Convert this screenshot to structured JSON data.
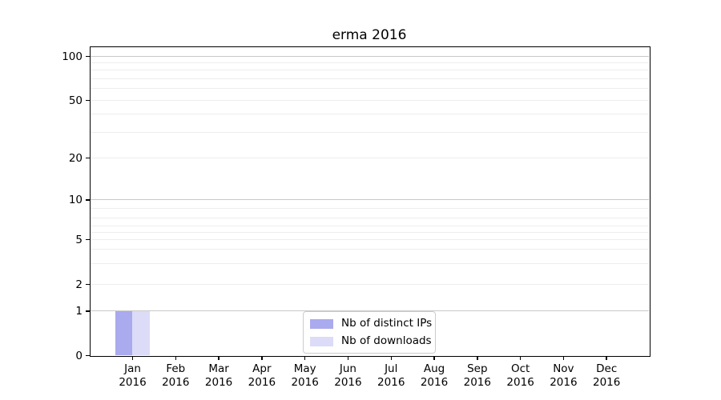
{
  "chart_data": {
    "type": "bar",
    "title": "erma 2016",
    "categories": [
      "Jan",
      "Feb",
      "Mar",
      "Apr",
      "May",
      "Jun",
      "Jul",
      "Aug",
      "Sep",
      "Oct",
      "Nov",
      "Dec"
    ],
    "category_year": "2016",
    "series": [
      {
        "name": "Nb of distinct IPs",
        "color": "#aaaaee",
        "values": [
          1,
          0,
          0,
          0,
          0,
          0,
          0,
          0,
          0,
          0,
          0,
          0
        ]
      },
      {
        "name": "Nb of downloads",
        "color": "#dcdcf8",
        "values": [
          1,
          0,
          0,
          0,
          0,
          0,
          0,
          0,
          0,
          0,
          0,
          0
        ]
      }
    ],
    "y_ticks": [
      0,
      1,
      2,
      5,
      10,
      20,
      50,
      100
    ],
    "y_scale": "symlog",
    "ylim": [
      0,
      120
    ],
    "grid": true,
    "legend": {
      "position": "lower center",
      "items": [
        "Nb of distinct IPs",
        "Nb of downloads"
      ]
    },
    "colors": {
      "background": "#ffffff",
      "axis": "#000000",
      "major_grid": "#c9c9c9",
      "minor_grid": "#ededed",
      "text": "#000000"
    }
  }
}
